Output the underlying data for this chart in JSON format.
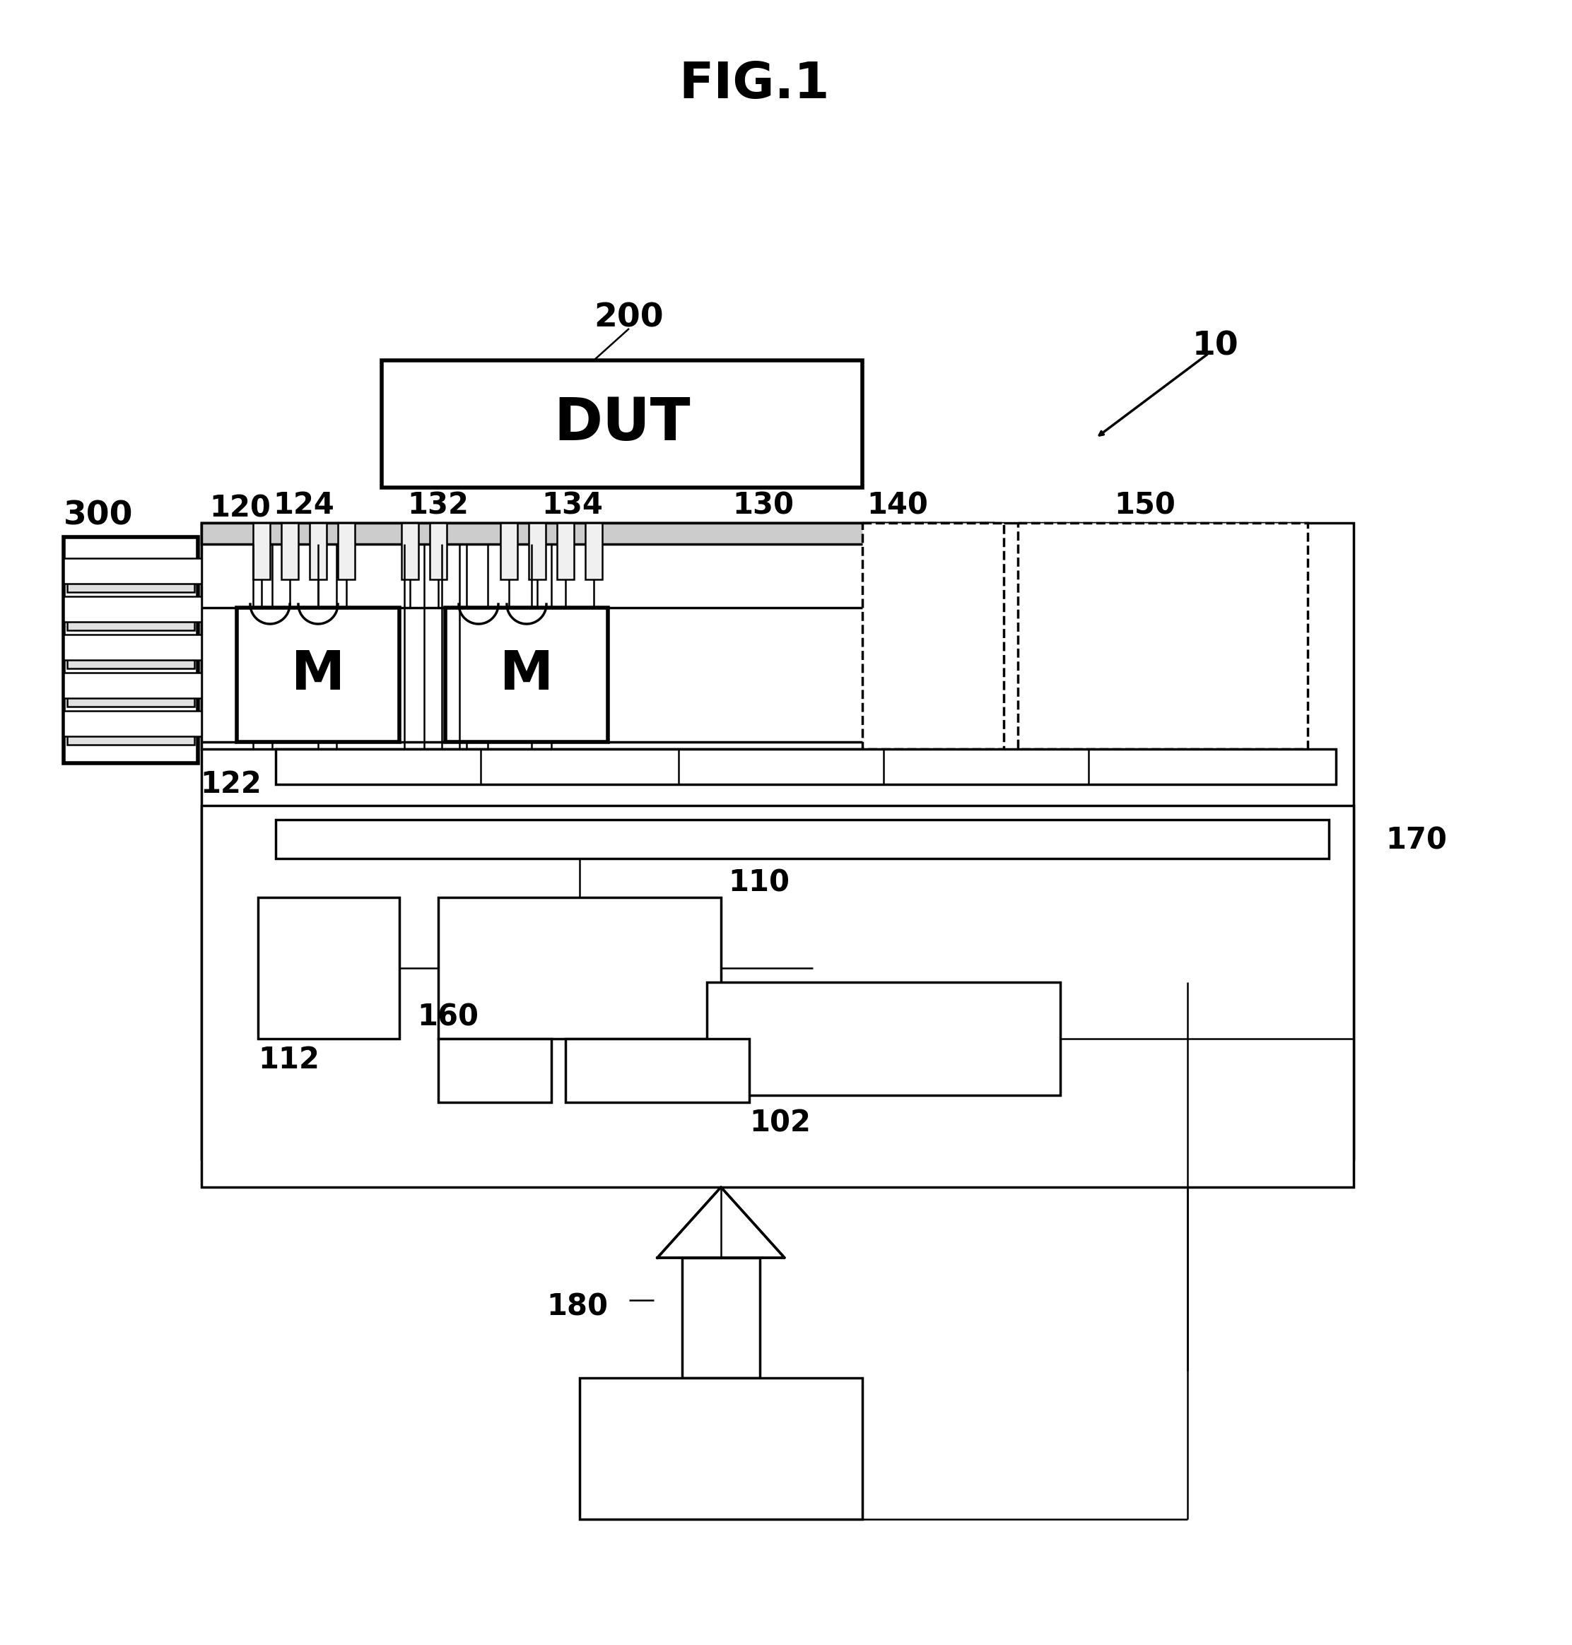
{
  "fig_width": 22.24,
  "fig_height": 23.28,
  "background_color": "#ffffff",
  "labels": {
    "fig_title": "FIG.1",
    "DUT": "DUT",
    "M1": "M",
    "M2": "M",
    "ref_200": "200",
    "ref_10": "10",
    "ref_300": "300",
    "ref_120": "120",
    "ref_122": "122",
    "ref_124": "124",
    "ref_130": "130",
    "ref_132": "132",
    "ref_134": "134",
    "ref_140": "140",
    "ref_150": "150",
    "ref_160": "160",
    "ref_170": "170",
    "ref_102": "102",
    "ref_110": "110",
    "ref_112": "112",
    "ref_180": "180"
  }
}
